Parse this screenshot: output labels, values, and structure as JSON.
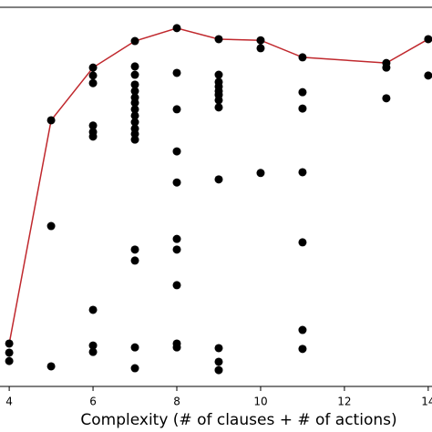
{
  "chart_data": {
    "type": "scatter",
    "xlabel": "Complexity (# of clauses + # of actions)",
    "xlim": [
      3.78,
      14.09
    ],
    "ylim": [
      0,
      1
    ],
    "xticks": [
      4,
      6,
      8,
      10,
      12,
      14
    ],
    "color": "#000000",
    "x": [
      4,
      4,
      4,
      5,
      5,
      5,
      6,
      6,
      6,
      6,
      6,
      6,
      6,
      6,
      6,
      7,
      7,
      7,
      7,
      7,
      7,
      7,
      7,
      7,
      7,
      7,
      7,
      7,
      7,
      7,
      7,
      7,
      8,
      8,
      8,
      8,
      8,
      8,
      8,
      8,
      8,
      8,
      9,
      9,
      9,
      9,
      9,
      9,
      9,
      9,
      9,
      9,
      9,
      9,
      10,
      10,
      10,
      11,
      11,
      11,
      11,
      11,
      11,
      11,
      13,
      13,
      13,
      14,
      14
    ],
    "values": [
      0.113,
      0.089,
      0.067,
      0.702,
      0.423,
      0.053,
      0.841,
      0.82,
      0.8,
      0.688,
      0.671,
      0.659,
      0.202,
      0.108,
      0.091,
      0.911,
      0.844,
      0.822,
      0.796,
      0.779,
      0.762,
      0.748,
      0.731,
      0.714,
      0.697,
      0.68,
      0.666,
      0.651,
      0.361,
      0.332,
      0.103,
      0.048,
      0.945,
      0.827,
      0.731,
      0.62,
      0.538,
      0.389,
      0.361,
      0.267,
      0.113,
      0.103,
      0.916,
      0.822,
      0.803,
      0.791,
      0.779,
      0.769,
      0.755,
      0.736,
      0.546,
      0.101,
      0.065,
      0.043,
      0.913,
      0.892,
      0.563,
      0.868,
      0.776,
      0.733,
      0.565,
      0.38,
      0.149,
      0.099,
      0.853,
      0.841,
      0.76,
      0.916,
      0.82
    ],
    "line": {
      "color": "#c0282d",
      "x": [
        4,
        5,
        6,
        7,
        8,
        9,
        10,
        11,
        13,
        14
      ],
      "values": [
        0.113,
        0.702,
        0.841,
        0.911,
        0.945,
        0.916,
        0.913,
        0.868,
        0.853,
        0.916
      ]
    }
  }
}
